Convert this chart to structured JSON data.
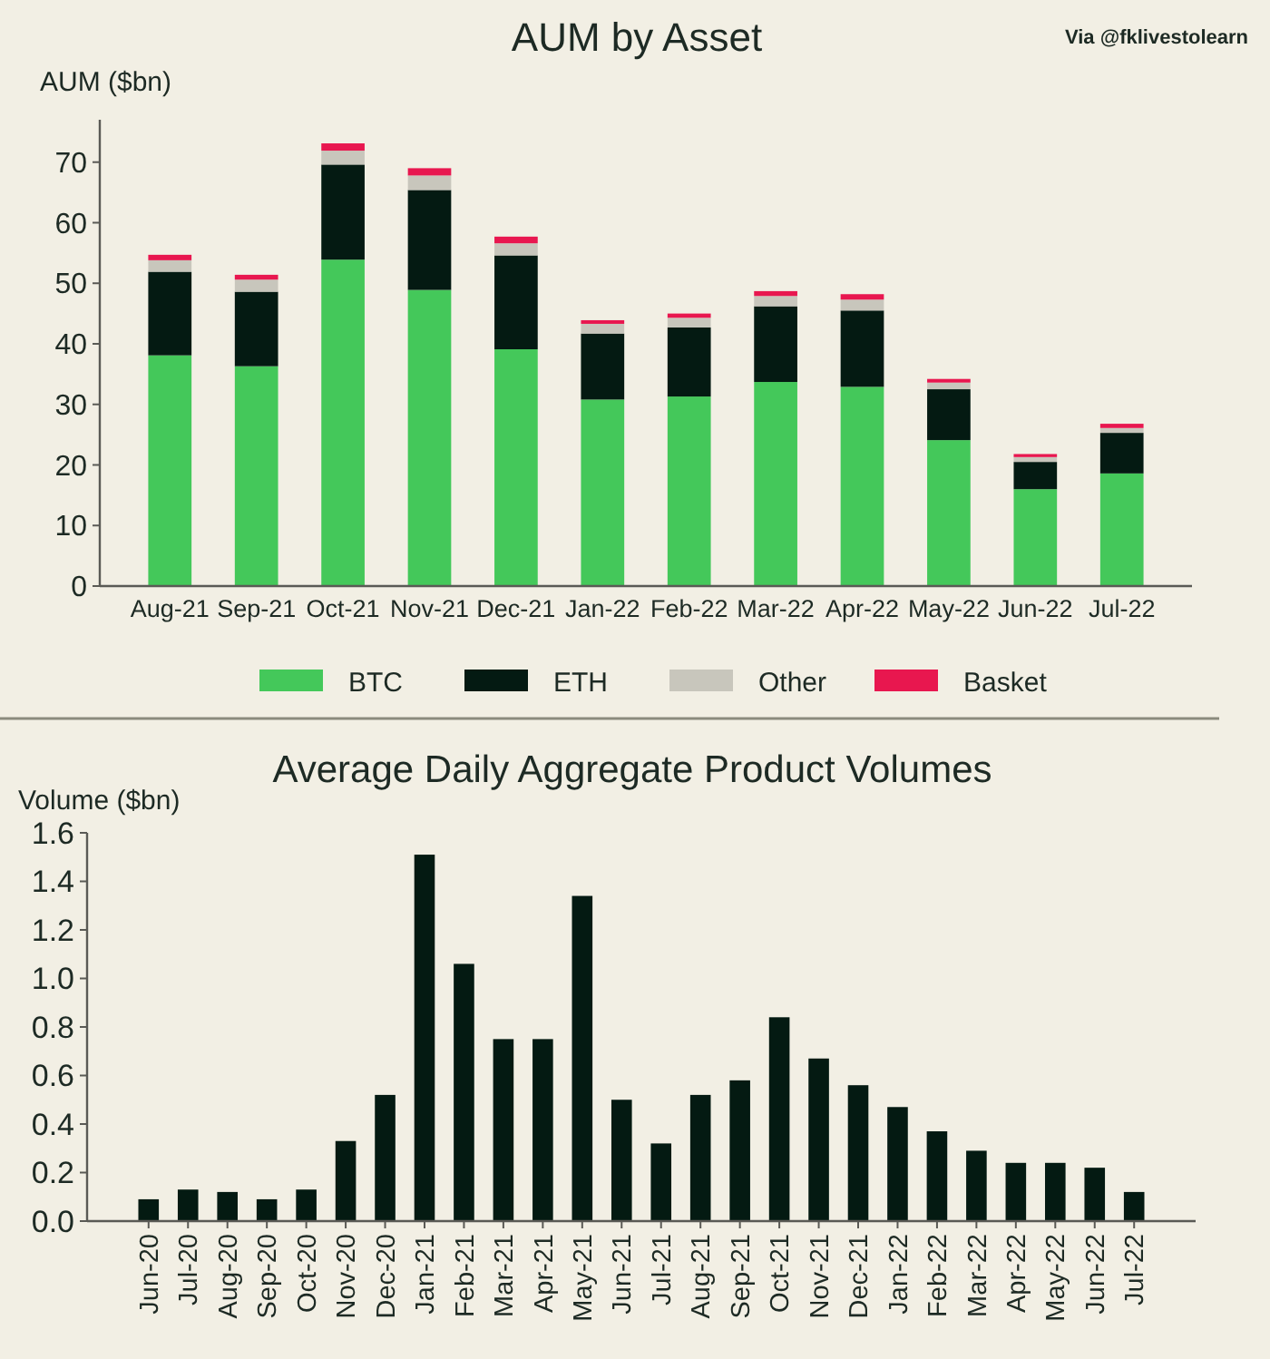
{
  "chart_data": [
    {
      "type": "bar",
      "title": "AUM by Asset",
      "ylabel": "AUM ($bn)",
      "annotations": [
        "Via @fklivestolearn"
      ],
      "categories": [
        "Aug-21",
        "Sep-21",
        "Oct-21",
        "Nov-21",
        "Dec-21",
        "Jan-22",
        "Feb-22",
        "Mar-22",
        "Apr-22",
        "May-22",
        "Jun-22",
        "Jul-22"
      ],
      "stacked": true,
      "series": [
        {
          "name": "BTC",
          "color": "#44c85a",
          "values": [
            38.1,
            36.3,
            53.9,
            48.9,
            39.1,
            30.8,
            31.3,
            33.7,
            32.9,
            24.1,
            16.0,
            18.6
          ]
        },
        {
          "name": "ETH",
          "color": "#041a12",
          "values": [
            13.8,
            12.3,
            15.7,
            16.5,
            15.5,
            10.9,
            11.4,
            12.5,
            12.6,
            8.4,
            4.5,
            6.7
          ]
        },
        {
          "name": "Other",
          "color": "#c8c6bc",
          "values": [
            1.9,
            2.0,
            2.3,
            2.4,
            2.0,
            1.6,
            1.6,
            1.7,
            1.8,
            1.1,
            0.8,
            0.8
          ]
        },
        {
          "name": "Basket",
          "color": "#e8174f",
          "values": [
            0.9,
            0.8,
            1.2,
            1.2,
            1.1,
            0.6,
            0.7,
            0.8,
            0.9,
            0.6,
            0.5,
            0.7
          ]
        }
      ],
      "ylim": [
        0,
        77
      ],
      "yticks": [
        0,
        10,
        20,
        30,
        40,
        50,
        60,
        70
      ],
      "legend": "bottom"
    },
    {
      "type": "bar",
      "title": "Average Daily Aggregate Product Volumes",
      "ylabel": "Volume ($bn)",
      "categories": [
        "Jun-20",
        "Jul-20",
        "Aug-20",
        "Sep-20",
        "Oct-20",
        "Nov-20",
        "Dec-20",
        "Jan-21",
        "Feb-21",
        "Mar-21",
        "Apr-21",
        "May-21",
        "Jun-21",
        "Jul-21",
        "Aug-21",
        "Sep-21",
        "Oct-21",
        "Nov-21",
        "Dec-21",
        "Jan-22",
        "Feb-22",
        "Mar-22",
        "Apr-22",
        "May-22",
        "Jun-22",
        "Jul-22"
      ],
      "values": [
        0.09,
        0.13,
        0.12,
        0.09,
        0.13,
        0.33,
        0.52,
        1.51,
        1.06,
        0.75,
        0.75,
        1.34,
        0.5,
        0.32,
        0.52,
        0.58,
        0.84,
        0.67,
        0.56,
        0.47,
        0.37,
        0.29,
        0.24,
        0.24,
        0.22,
        0.12
      ],
      "color": "#041a12",
      "ylim": [
        0,
        1.6
      ],
      "yticks": [
        {
          "value": 0,
          "label": "0.0"
        },
        0.2,
        0.4,
        0.6,
        0.8,
        {
          "value": 1,
          "label": "1.0"
        },
        1.2,
        1.4,
        1.6
      ]
    }
  ]
}
